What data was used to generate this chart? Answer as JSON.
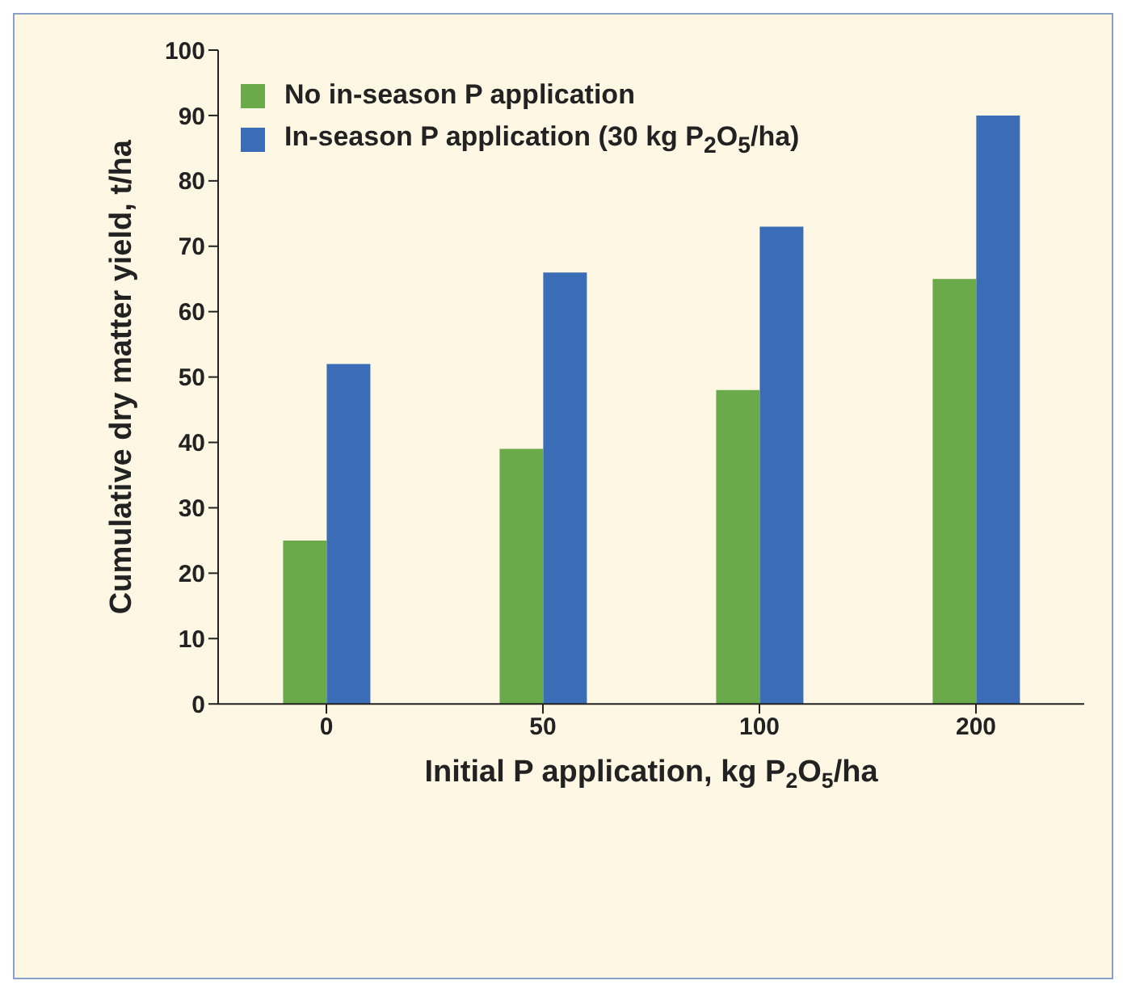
{
  "chart_data": {
    "type": "bar",
    "xlabel": "Initial P application, kg P$_{2}$O$_{5}$/ha",
    "ylabel": "Cumulative dry matter yield, t/ha",
    "categories": [
      "0",
      "50",
      "100",
      "200"
    ],
    "series": [
      {
        "name": "No in-season P application",
        "color": "#6aaa4b",
        "values": [
          25,
          39,
          48,
          65
        ]
      },
      {
        "name": "In-season P application (30 kg P$_{2}$O$_{5}$/ha)",
        "color": "#3a6db5",
        "values": [
          52,
          66,
          73,
          90
        ]
      }
    ],
    "ylim": [
      0,
      100
    ],
    "yticks": [
      0,
      10,
      20,
      30,
      40,
      50,
      60,
      70,
      80,
      90,
      100
    ],
    "grid": false,
    "legend": "top left"
  }
}
